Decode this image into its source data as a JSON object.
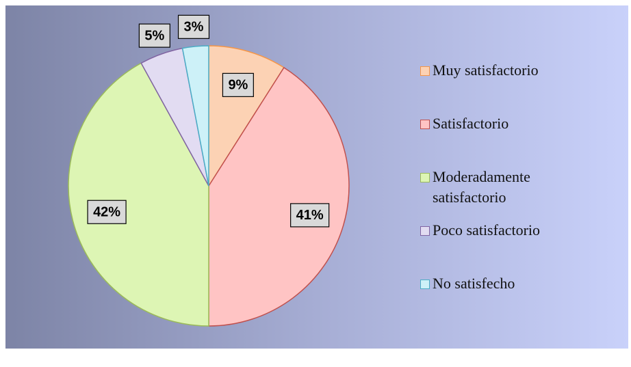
{
  "chart_data": {
    "type": "pie",
    "categories": [
      "Muy satisfactorio",
      "Satisfactorio",
      "Moderadamente satisfactorio",
      "Poco satisfactorio",
      "No satisfecho"
    ],
    "values": [
      9,
      41,
      42,
      5,
      3
    ],
    "value_labels": [
      "9%",
      "41%",
      "42%",
      "5%",
      "3%"
    ],
    "colors": [
      "#fcd2b4",
      "#ffc4c4",
      "#ddf5b4",
      "#e2dcf2",
      "#cdf1f8"
    ],
    "stroke_colors": [
      "#f79646",
      "#c0504d",
      "#9bbb59",
      "#8064a2",
      "#4bacc6"
    ],
    "legend": "right"
  }
}
